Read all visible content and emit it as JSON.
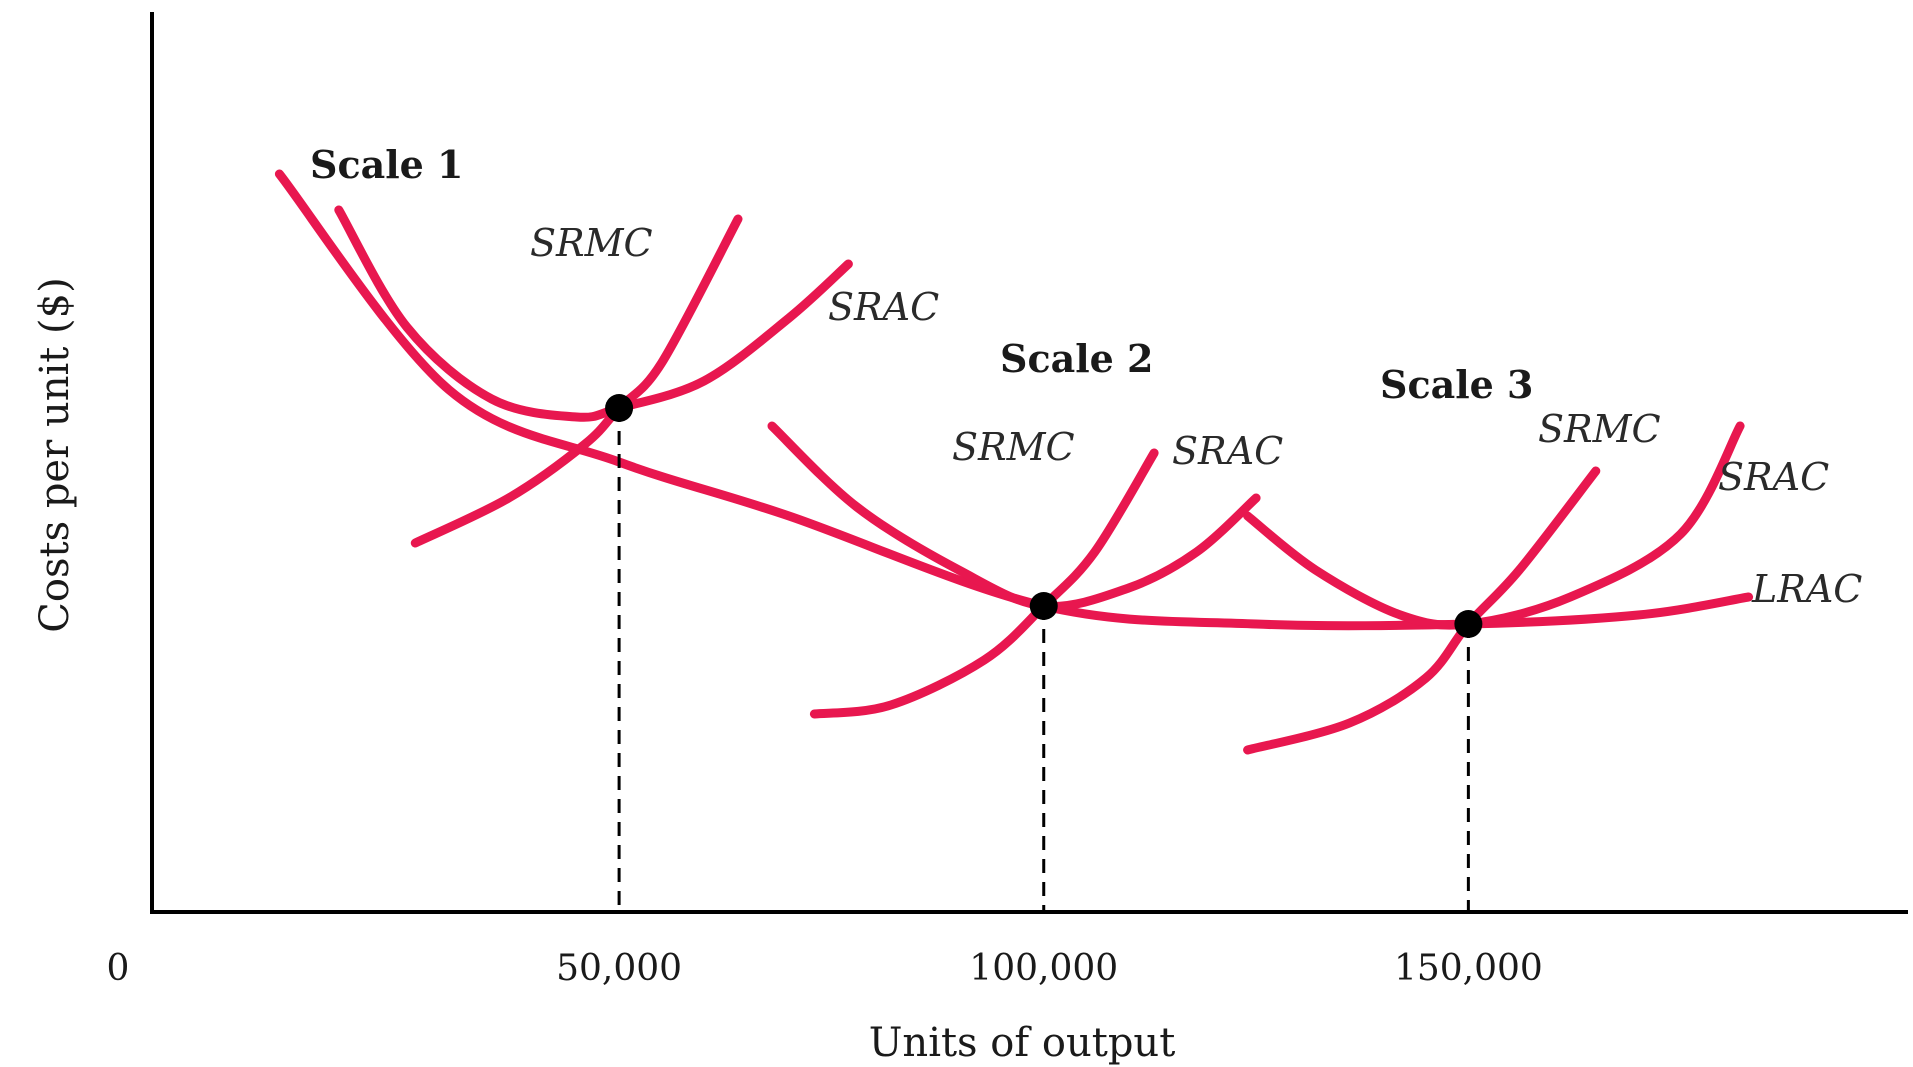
{
  "chart_data": {
    "type": "line",
    "title": "",
    "xlabel": "Units of output",
    "ylabel": "Costs per unit ($)",
    "origin_label": "0",
    "x_tick_labels": [
      "50,000",
      "100,000",
      "150,000"
    ],
    "x_ticks": [
      50000,
      100000,
      150000
    ],
    "xlim": [
      -5000,
      202000
    ],
    "ylim": [
      0,
      100
    ],
    "grid": false,
    "legend": "none",
    "curve_color": "#e8174f",
    "scales": [
      {
        "label": "Scale 1",
        "srmc_label": "SRMC",
        "srac_label": "SRAC"
      },
      {
        "label": "Scale 2",
        "srmc_label": "SRMC",
        "srac_label": "SRAC"
      },
      {
        "label": "Scale 3",
        "srmc_label": "SRMC",
        "srac_label": "SRAC"
      }
    ],
    "lrac_label": "LRAC",
    "series": [
      {
        "name": "LRAC",
        "x": [
          10000,
          30000,
          50000,
          70000,
          100000,
          125000,
          150000,
          170000,
          183000
        ],
        "y": [
          82,
          58,
          50,
          44,
          34,
          32,
          32,
          33,
          35
        ]
      },
      {
        "name": "SRAC",
        "x": [
          17000,
          25000,
          35000,
          45000,
          50000,
          60000,
          70000,
          77000
        ],
        "y": [
          78,
          65,
          57,
          55,
          56,
          59,
          66,
          72
        ]
      },
      {
        "name": "SRMC",
        "x": [
          26000,
          37000,
          46000,
          50000,
          55000,
          64000
        ],
        "y": [
          41,
          46,
          52,
          56,
          61,
          77
        ]
      },
      {
        "name": "SRAC",
        "x": [
          68000,
          78000,
          90000,
          100000,
          110000,
          118000,
          125000
        ],
        "y": [
          54,
          45,
          38,
          34,
          36,
          40,
          46
        ]
      },
      {
        "name": "SRMC",
        "x": [
          73000,
          82000,
          93000,
          100000,
          106000,
          113000
        ],
        "y": [
          22,
          23,
          28,
          34,
          40,
          51
        ]
      },
      {
        "name": "SRAC",
        "x": [
          124000,
          132000,
          142000,
          150000,
          162000,
          175000,
          182000
        ],
        "y": [
          44,
          38,
          33,
          32,
          35,
          42,
          54
        ]
      },
      {
        "name": "SRMC",
        "x": [
          124000,
          136000,
          145000,
          150000,
          156000,
          165000
        ],
        "y": [
          18,
          21,
          26,
          32,
          38,
          49
        ]
      }
    ],
    "points": [
      {
        "x": 50000,
        "y": 56
      },
      {
        "x": 100000,
        "y": 34
      },
      {
        "x": 150000,
        "y": 32
      }
    ]
  }
}
